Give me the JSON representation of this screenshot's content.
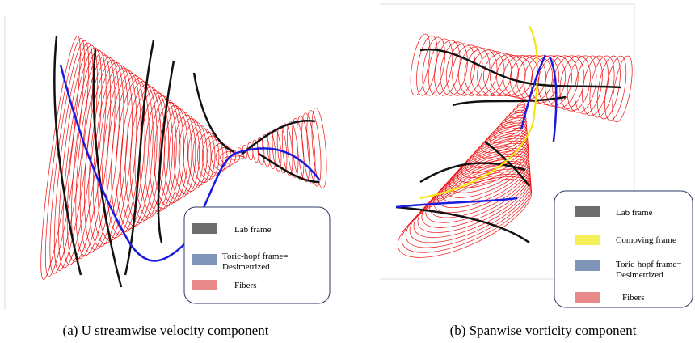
{
  "panels": [
    {
      "caption": "(a) U streamwise velocity component",
      "legend": [
        {
          "lines": [
            "Lab frame"
          ]
        },
        {
          "lines": [
            "Toric-hopf frame=",
            "Desimetrized"
          ]
        },
        {
          "lines": [
            "Fibers"
          ]
        }
      ]
    },
    {
      "caption": "(b) Spanwise vorticity component",
      "legend": [
        {
          "lines": [
            "Lab frame"
          ]
        },
        {
          "lines": [
            "Comoving frame"
          ]
        },
        {
          "lines": [
            "Toric-hopf frame=",
            "Desimetrized"
          ]
        },
        {
          "lines": [
            "Fibers"
          ]
        }
      ]
    }
  ]
}
